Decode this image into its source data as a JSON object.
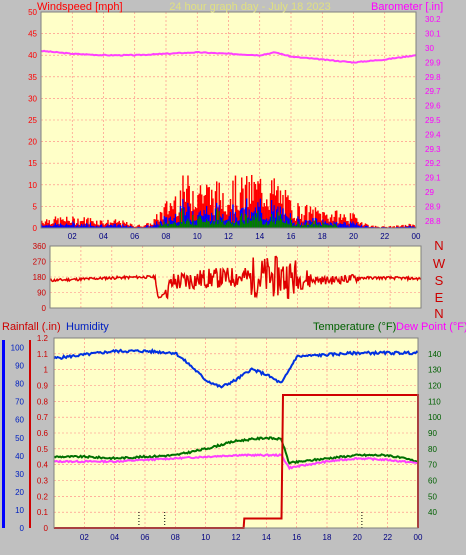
{
  "header": {
    "left_title": "Windspeed [mph]",
    "center_title": "24 hour graph day - July 18 2023",
    "right_title": "Barometer [.in]"
  },
  "x_ticks": [
    "02",
    "04",
    "06",
    "08",
    "10",
    "12",
    "14",
    "16",
    "18",
    "20",
    "22",
    "00"
  ],
  "direction_labels": [
    "N",
    "W",
    "S",
    "E",
    "N"
  ],
  "bottom_header": {
    "rain_label": "Rainfall (.in)",
    "humidity_label": "Humidity",
    "temp_label": "Temperature (°F)",
    "dew_label": "Dew Point (°F)"
  },
  "colors": {
    "plot_bg": "#ffffc8",
    "grid": "#ff8080",
    "wind_gust": "#ff0000",
    "wind_avg": "#0000ff",
    "wind_min": "#008000",
    "barometer": "#ff40ff",
    "direction": "#e00000",
    "rain": "#d00000",
    "humidity": "#0030e0",
    "temperature": "#007000",
    "dewpoint": "#ff40ff",
    "green_label": "#006000",
    "magenta_label": "#ff00ff"
  },
  "chart_data": [
    {
      "type": "bar",
      "series_kind": "wind",
      "y_ticks_left": [
        "0",
        "5",
        "10",
        "15",
        "20",
        "25",
        "30",
        "35",
        "40",
        "45",
        "50"
      ],
      "ylim": [
        0,
        50
      ],
      "y_ticks_right": [
        "28.8",
        "28.9",
        "29",
        "29.1",
        "29.2",
        "29.3",
        "29.4",
        "29.5",
        "29.6",
        "29.7",
        "29.8",
        "29.9",
        "30",
        "30.1",
        "30.2"
      ],
      "ylim_right": [
        28.75,
        30.25
      ],
      "wind_profile": {
        "hours": [
          0,
          1,
          2,
          3,
          4,
          5,
          6,
          7,
          8,
          9,
          10,
          11,
          12,
          13,
          14,
          15,
          16,
          17,
          18,
          19,
          20,
          21,
          22,
          23,
          24
        ],
        "gust_level": [
          2,
          2,
          2,
          2,
          1.5,
          1.5,
          0.5,
          1,
          5,
          9,
          10,
          8,
          9,
          9,
          10,
          9,
          5,
          4,
          3.5,
          3,
          2.5,
          0.5,
          0.3,
          0.5,
          1
        ]
      },
      "barometer": {
        "hours": [
          0,
          2,
          4,
          6,
          8,
          10,
          12,
          14,
          15,
          16,
          18,
          20,
          22,
          24
        ],
        "values": [
          29.98,
          29.96,
          29.95,
          29.95,
          29.96,
          29.97,
          29.96,
          29.95,
          29.97,
          29.94,
          29.92,
          29.9,
          29.92,
          29.95
        ]
      }
    },
    {
      "type": "line",
      "series_kind": "direction",
      "y_ticks": [
        "0",
        "90",
        "180",
        "270",
        "360"
      ],
      "ylim": [
        0,
        360
      ],
      "direction": {
        "hours": [
          0,
          4,
          6,
          6.8,
          7,
          8,
          10,
          12,
          14,
          15,
          16,
          18,
          20,
          22,
          24
        ],
        "values": [
          160,
          175,
          180,
          180,
          50,
          150,
          170,
          180,
          180,
          180,
          170,
          160,
          175,
          175,
          170
        ]
      }
    },
    {
      "type": "line",
      "series_kind": "rain-humidity-temp",
      "rain_ticks": [
        "0",
        "0.1",
        "0.2",
        "0.3",
        "0.4",
        "0.5",
        "0.6",
        "0.7",
        "0.8",
        "0.9",
        "1",
        "1.1",
        "1.2"
      ],
      "rain_ylim": [
        0,
        1.2
      ],
      "humidity_ticks": [
        "0",
        "10",
        "20",
        "30",
        "40",
        "50",
        "60",
        "70",
        "80",
        "90",
        "100"
      ],
      "humidity_ylim": [
        0,
        100
      ],
      "temp_ticks": [
        "40",
        "50",
        "60",
        "70",
        "80",
        "90",
        "100",
        "110",
        "120",
        "130",
        "140"
      ],
      "temp_ylim": [
        30,
        150
      ],
      "humidity": {
        "hours": [
          0,
          2,
          4,
          6,
          8,
          9,
          10,
          11,
          12,
          13,
          14,
          15,
          16,
          18,
          20,
          24
        ],
        "values": [
          94,
          96,
          98,
          98,
          97,
          90,
          82,
          78,
          82,
          88,
          85,
          80,
          95,
          96,
          97,
          97
        ]
      },
      "temperature": {
        "hours": [
          0,
          2,
          4,
          6,
          8,
          10,
          12,
          14,
          15,
          15.5,
          18,
          20,
          22,
          24
        ],
        "values": [
          75,
          75,
          74,
          75,
          76,
          80,
          85,
          87,
          86,
          71,
          74,
          76,
          76,
          72
        ]
      },
      "dewpoint": {
        "hours": [
          0,
          2,
          4,
          6,
          8,
          10,
          12,
          14,
          15,
          15.5,
          18,
          20,
          22,
          24
        ],
        "values": [
          72,
          72,
          72,
          73,
          74,
          75,
          76,
          76,
          76,
          68,
          72,
          74,
          73,
          71
        ]
      },
      "rain": {
        "hours": [
          0,
          12.5,
          12.55,
          15,
          15.1,
          24,
          24
        ],
        "values": [
          0,
          0,
          0.06,
          0.06,
          0.84,
          0.84,
          0
        ]
      }
    }
  ]
}
